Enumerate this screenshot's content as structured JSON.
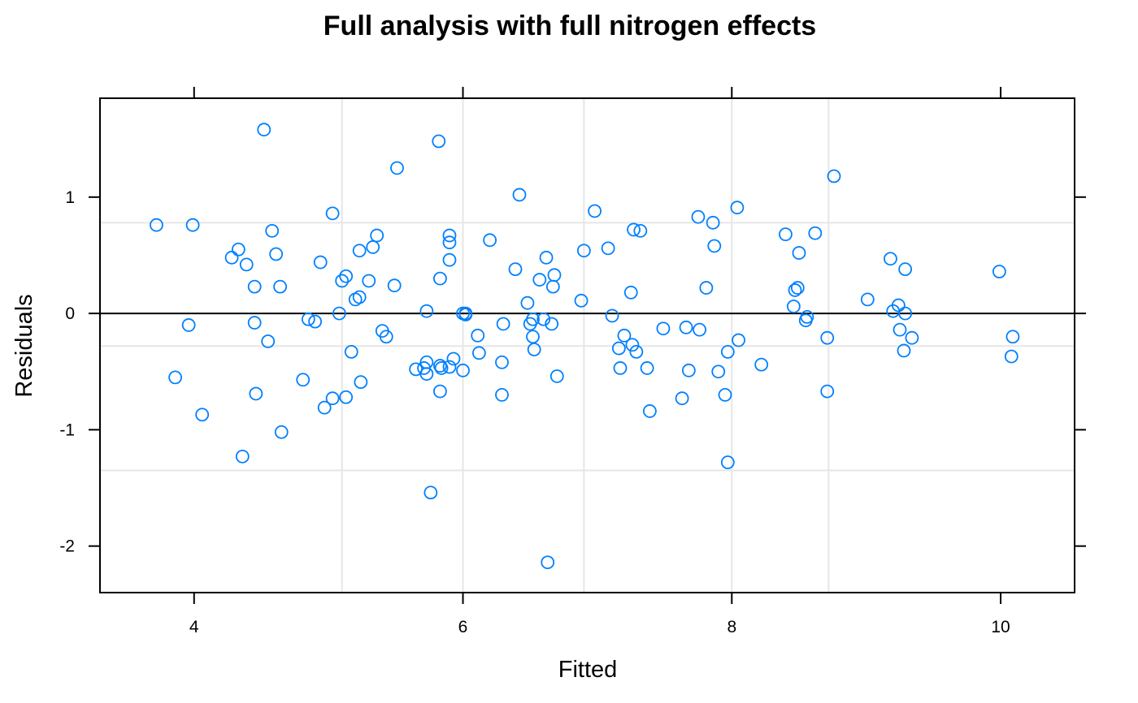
{
  "chart_data": {
    "type": "scatter",
    "title": "Full analysis with full nitrogen effects",
    "xlabel": "Fitted",
    "ylabel": "Residuals",
    "xlim": [
      3.3,
      10.55
    ],
    "ylim": [
      -2.4,
      1.85
    ],
    "xticks": [
      4,
      6,
      8,
      10
    ],
    "yticks": [
      -2,
      -1,
      0,
      1
    ],
    "xtick_labels": [
      "4",
      "6",
      "8",
      "10"
    ],
    "ytick_labels": [
      "-2",
      "-1",
      "0",
      "1"
    ],
    "x_grid": [
      5.1,
      6.0,
      6.9,
      8.0,
      8.72
    ],
    "y_grid": [
      0.78,
      -0.28,
      -1.35
    ],
    "reference_line_y": 0,
    "grid": true,
    "legend": "none",
    "marker": "open-circle",
    "marker_color": "#0080ff",
    "points": [
      [
        3.72,
        0.76
      ],
      [
        3.96,
        -0.1
      ],
      [
        3.99,
        0.76
      ],
      [
        3.86,
        -0.55
      ],
      [
        4.06,
        -0.87
      ],
      [
        4.28,
        0.48
      ],
      [
        4.33,
        0.55
      ],
      [
        4.39,
        0.42
      ],
      [
        4.45,
        0.23
      ],
      [
        4.45,
        -0.08
      ],
      [
        4.46,
        -0.69
      ],
      [
        4.36,
        -1.23
      ],
      [
        4.52,
        1.58
      ],
      [
        4.55,
        -0.24
      ],
      [
        4.58,
        0.71
      ],
      [
        4.61,
        0.51
      ],
      [
        4.64,
        0.23
      ],
      [
        4.65,
        -1.02
      ],
      [
        4.81,
        -0.57
      ],
      [
        4.85,
        -0.05
      ],
      [
        4.9,
        -0.07
      ],
      [
        4.94,
        0.44
      ],
      [
        4.97,
        -0.81
      ],
      [
        5.03,
        0.86
      ],
      [
        5.03,
        -0.73
      ],
      [
        5.08,
        0.0
      ],
      [
        5.1,
        0.28
      ],
      [
        5.13,
        0.32
      ],
      [
        5.13,
        -0.72
      ],
      [
        5.17,
        -0.33
      ],
      [
        5.2,
        0.12
      ],
      [
        5.23,
        0.54
      ],
      [
        5.23,
        0.14
      ],
      [
        5.24,
        -0.59
      ],
      [
        5.3,
        0.28
      ],
      [
        5.33,
        0.57
      ],
      [
        5.36,
        0.67
      ],
      [
        5.4,
        -0.15
      ],
      [
        5.43,
        -0.2
      ],
      [
        5.49,
        0.24
      ],
      [
        5.51,
        1.25
      ],
      [
        5.65,
        -0.48
      ],
      [
        5.71,
        -0.47
      ],
      [
        5.73,
        -0.42
      ],
      [
        5.73,
        -0.52
      ],
      [
        5.73,
        0.02
      ],
      [
        5.76,
        -1.54
      ],
      [
        5.82,
        1.48
      ],
      [
        5.83,
        0.3
      ],
      [
        5.83,
        -0.45
      ],
      [
        5.84,
        -0.47
      ],
      [
        5.83,
        -0.67
      ],
      [
        5.9,
        0.67
      ],
      [
        5.9,
        0.61
      ],
      [
        5.9,
        0.46
      ],
      [
        5.9,
        -0.46
      ],
      [
        5.93,
        -0.39
      ],
      [
        6.0,
        -0.49
      ],
      [
        6.0,
        0.0
      ],
      [
        6.02,
        -0.01
      ],
      [
        6.02,
        0.0
      ],
      [
        6.11,
        -0.19
      ],
      [
        6.12,
        -0.34
      ],
      [
        6.2,
        0.63
      ],
      [
        6.29,
        -0.7
      ],
      [
        6.29,
        -0.42
      ],
      [
        6.3,
        -0.09
      ],
      [
        6.39,
        0.38
      ],
      [
        6.42,
        1.02
      ],
      [
        6.48,
        0.09
      ],
      [
        6.5,
        -0.09
      ],
      [
        6.52,
        -0.05
      ],
      [
        6.52,
        -0.2
      ],
      [
        6.53,
        -0.31
      ],
      [
        6.57,
        0.29
      ],
      [
        6.6,
        -0.05
      ],
      [
        6.62,
        0.48
      ],
      [
        6.66,
        -0.09
      ],
      [
        6.67,
        0.23
      ],
      [
        6.68,
        0.33
      ],
      [
        6.7,
        -0.54
      ],
      [
        6.63,
        -2.14
      ],
      [
        6.88,
        0.11
      ],
      [
        6.9,
        0.54
      ],
      [
        6.98,
        0.88
      ],
      [
        7.08,
        0.56
      ],
      [
        7.11,
        -0.02
      ],
      [
        7.16,
        -0.3
      ],
      [
        7.17,
        -0.47
      ],
      [
        7.2,
        -0.19
      ],
      [
        7.25,
        0.18
      ],
      [
        7.26,
        -0.27
      ],
      [
        7.27,
        0.72
      ],
      [
        7.29,
        -0.33
      ],
      [
        7.32,
        0.71
      ],
      [
        7.37,
        -0.47
      ],
      [
        7.39,
        -0.84
      ],
      [
        7.49,
        -0.13
      ],
      [
        7.63,
        -0.73
      ],
      [
        7.66,
        -0.12
      ],
      [
        7.68,
        -0.49
      ],
      [
        7.75,
        0.83
      ],
      [
        7.76,
        -0.14
      ],
      [
        7.81,
        0.22
      ],
      [
        7.86,
        0.78
      ],
      [
        7.87,
        0.58
      ],
      [
        7.9,
        -0.5
      ],
      [
        7.95,
        -0.7
      ],
      [
        7.97,
        -0.33
      ],
      [
        7.97,
        -1.28
      ],
      [
        8.04,
        0.91
      ],
      [
        8.05,
        -0.23
      ],
      [
        8.22,
        -0.44
      ],
      [
        8.4,
        0.68
      ],
      [
        8.46,
        0.06
      ],
      [
        8.47,
        0.2
      ],
      [
        8.49,
        0.22
      ],
      [
        8.5,
        0.52
      ],
      [
        8.55,
        -0.06
      ],
      [
        8.56,
        -0.03
      ],
      [
        8.62,
        0.69
      ],
      [
        8.71,
        -0.67
      ],
      [
        8.71,
        -0.21
      ],
      [
        8.76,
        1.18
      ],
      [
        9.01,
        0.12
      ],
      [
        9.18,
        0.47
      ],
      [
        9.2,
        0.02
      ],
      [
        9.24,
        0.07
      ],
      [
        9.25,
        -0.14
      ],
      [
        9.28,
        -0.32
      ],
      [
        9.29,
        0.38
      ],
      [
        9.29,
        0.0
      ],
      [
        9.34,
        -0.21
      ],
      [
        9.99,
        0.36
      ],
      [
        10.08,
        -0.37
      ],
      [
        10.09,
        -0.2
      ]
    ]
  }
}
